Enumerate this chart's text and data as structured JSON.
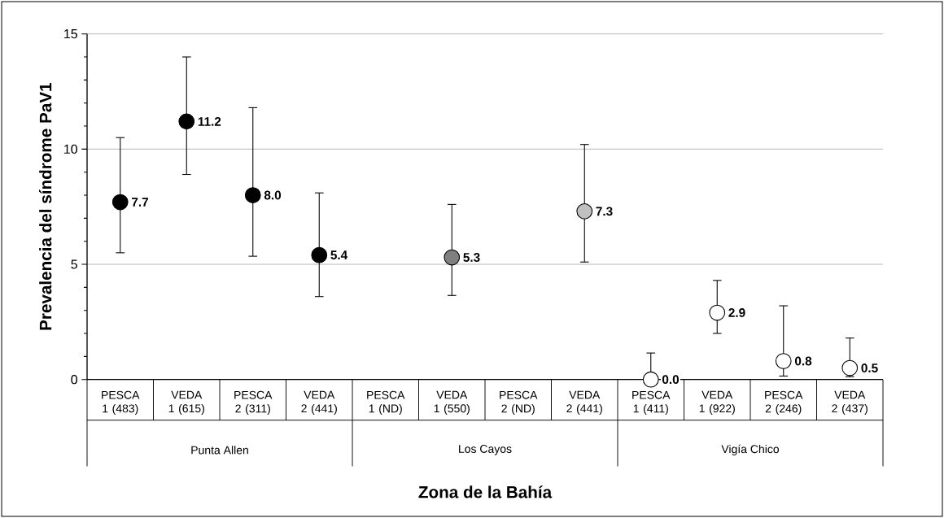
{
  "chart_data": {
    "type": "scatter",
    "ylabel": "Prevalencia del síndrome PaV1",
    "xlabel": "Zona de la Bahía",
    "categories": [
      "PESCA 1 (483)",
      "VEDA 1 (615)",
      "PESCA 2 (311)",
      "VEDA 2 (441)",
      "PESCA 1 (ND)",
      "VEDA 1 (550)",
      "PESCA 2 (ND)",
      "VEDA 2 (441)",
      "PESCA 1 (411)",
      "VEDA 1 (922)",
      "PESCA 2 (246)",
      "VEDA 2 (437)"
    ],
    "values": [
      7.7,
      11.2,
      8.0,
      5.4,
      null,
      5.3,
      null,
      7.3,
      0.0,
      2.9,
      0.8,
      0.5
    ],
    "value_labels": [
      "7.7",
      "11.2",
      "8.0",
      "5.4",
      null,
      "5.3",
      null,
      "7.3",
      "0.0",
      "2.9",
      "0.8",
      "0.5"
    ],
    "errors": [
      [
        5.5,
        10.5
      ],
      [
        8.9,
        14.0
      ],
      [
        5.35,
        11.8
      ],
      [
        3.6,
        8.1
      ],
      null,
      [
        3.65,
        7.6
      ],
      null,
      [
        5.1,
        10.2
      ],
      [
        0,
        1.15
      ],
      [
        2.0,
        4.3
      ],
      [
        0.15,
        3.2
      ],
      [
        0.12,
        1.8
      ]
    ],
    "colors": [
      "#000000",
      "#000000",
      "#000000",
      "#000000",
      "#000000",
      "#808080",
      "#000000",
      "#c0c0c0",
      "#ffffff",
      "#ffffff",
      "#ffffff",
      "#ffffff"
    ],
    "annotations": [
      "Punta Allen",
      "Los Cayos",
      "Vigía Chico"
    ],
    "ylim": [
      0,
      15
    ],
    "yticks": [
      0,
      5,
      10,
      15
    ],
    "grid": "y",
    "marker": "circle"
  }
}
